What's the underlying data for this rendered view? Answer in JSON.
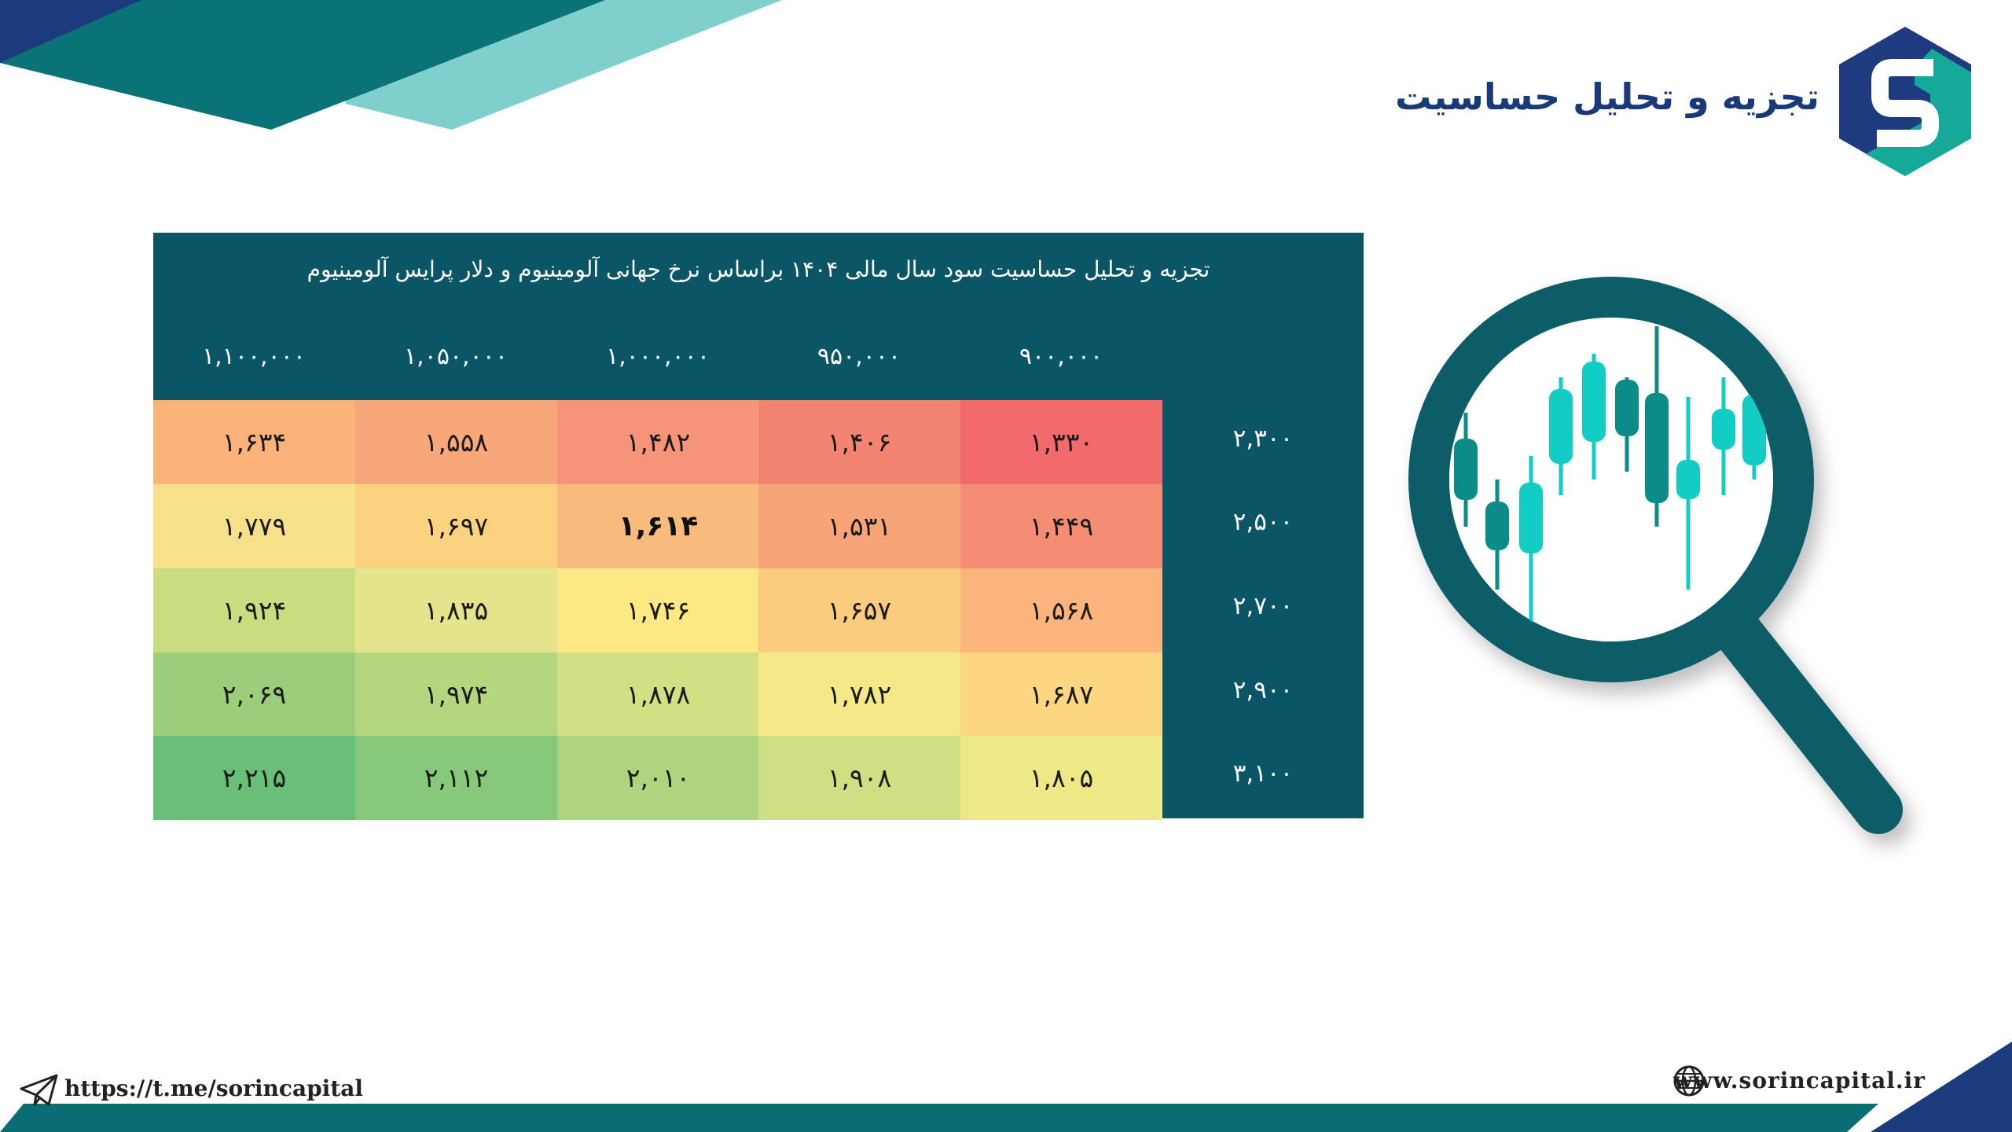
{
  "header": {
    "title": "تجزیه و تحلیل حساسیت"
  },
  "table": {
    "title": "تجزیه و تحلیل حساسیت سود سال مالی ۱۴۰۴ براساس نرخ جهانی آلومینیوم و دلار پرایس آلومینیوم",
    "column_headers": [
      "۱,۱۰۰,۰۰۰",
      "۱,۰۵۰,۰۰۰",
      "۱,۰۰۰,۰۰۰",
      "۹۵۰,۰۰۰",
      "۹۰۰,۰۰۰"
    ],
    "row_headers": [
      "۲,۳۰۰",
      "۲,۵۰۰",
      "۲,۷۰۰",
      "۲,۹۰۰",
      "۳,۱۰۰"
    ],
    "rows": [
      [
        "۱,۶۳۴",
        "۱,۵۵۸",
        "۱,۴۸۲",
        "۱,۴۰۶",
        "۱,۳۳۰"
      ],
      [
        "۱,۷۷۹",
        "۱,۶۹۷",
        "۱,۶۱۴",
        "۱,۵۳۱",
        "۱,۴۴۹"
      ],
      [
        "۱,۹۲۴",
        "۱,۸۳۵",
        "۱,۷۴۶",
        "۱,۶۵۷",
        "۱,۵۶۸"
      ],
      [
        "۲,۰۶۹",
        "۱,۹۷۴",
        "۱,۸۷۸",
        "۱,۷۸۲",
        "۱,۶۸۷"
      ],
      [
        "۲,۲۱۵",
        "۲,۱۱۲",
        "۲,۰۱۰",
        "۱,۹۰۸",
        "۱,۸۰۵"
      ]
    ],
    "cell_colors": [
      [
        "#fbb37a",
        "#f8a77b",
        "#f59478",
        "#f48472",
        "#f26a6b"
      ],
      [
        "#f7e08a",
        "#fbd27f",
        "#f9ba7d",
        "#f7a479",
        "#f58c74"
      ],
      [
        "#c9dc80",
        "#e3e48c",
        "#fde883",
        "#fccc7e",
        "#fbb47b"
      ],
      [
        "#9ccd7b",
        "#b3d67f",
        "#d1e085",
        "#f4e888",
        "#fdd681"
      ],
      [
        "#69bf77",
        "#87c87a",
        "#aed47f",
        "#cfdf84",
        "#eee887"
      ]
    ],
    "highlighted_cell": "۱,۶۱۴",
    "panel_color": "#0a5566"
  },
  "footer": {
    "telegram_link": "https://t.me/sorincapital",
    "website": "www.sorincapital.ir"
  },
  "icons": [
    "logo-icon",
    "magnifier-icon",
    "candlestick-chart-icon",
    "telegram-icon",
    "globe-icon"
  ],
  "colors": {
    "navy": "#1d3b7e",
    "teal": "#0c7a7a",
    "light_teal": "#7ecfcc",
    "candle_green": "#11cdc4",
    "candle_dark": "#0b8c89"
  }
}
